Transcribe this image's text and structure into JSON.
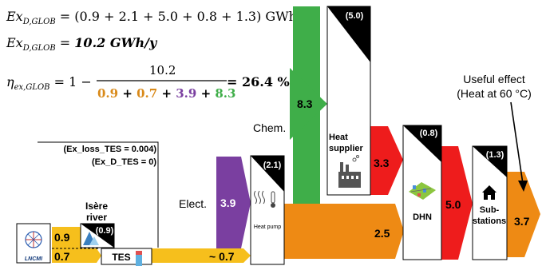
{
  "equations": {
    "line1": {
      "lhs": "Ex",
      "lhs_sub": "D,GLOB",
      "rhs": " = (0.9 + 2.1 + 5.0 + 0.8 + 1.3) GWh/y"
    },
    "line2": {
      "lhs": "Ex",
      "lhs_sub": "D,GLOB",
      "eq": " = ",
      "rhs": "10.2 GWh/y"
    },
    "line3": {
      "lhs": "η",
      "lhs_sub": "ex,GLOB",
      "eq": " = 1 − ",
      "numerator": "10.2",
      "den_terms": [
        {
          "text": "0.9",
          "color": "#d98a1a"
        },
        {
          "text": " + ",
          "color": "#000000"
        },
        {
          "text": "0.7",
          "color": "#d98a1a"
        },
        {
          "text": " + ",
          "color": "#000000"
        },
        {
          "text": "3.9",
          "color": "#7a3fa0"
        },
        {
          "text": " + ",
          "color": "#000000"
        },
        {
          "text": "8.3",
          "color": "#3fae49"
        }
      ],
      "result": " = 26.4 %"
    }
  },
  "notes": {
    "tes_loss": "(Ex_loss_TES = 0.004)",
    "tes_d": "(Ex_D_TES = 0)"
  },
  "labels": {
    "chem": "Chem.",
    "elect": "Elect.",
    "isere": "Isère\nriver",
    "useful_line1": "Useful effect",
    "useful_line2": "(Heat at 60 °C)"
  },
  "flows": {
    "chem_value": "8.3",
    "elect_value": "3.9",
    "in_top_value": "0.9",
    "in_bottom_value": "0.7",
    "tes_out_value": "~ 0.7",
    "heat_red_value": "3.3",
    "pump_out_value": "2.5",
    "dhn_out_value": "5.0",
    "final_value": "3.7"
  },
  "boxes": {
    "lncmi": "LNCMI",
    "tes": "TES",
    "river_destruction": "(0.9)",
    "heat_pump": "Heat pump",
    "heat_pump_destruction": "(2.1)",
    "heat_supplier": "Heat\nsupplier",
    "heat_supplier_destruction": "(5.0)",
    "dhn": "DHN",
    "dhn_destruction": "(0.8)",
    "substations": "Sub-\nstations",
    "substations_destruction": "(1.3)"
  },
  "colors": {
    "orange": "#ee8a14",
    "yellow": "#f6bf1c",
    "green": "#3fae49",
    "purple": "#7a3fa0",
    "red": "#ee1c1c",
    "black": "#000000"
  },
  "icons": [
    "heat-waves-icon",
    "thermometer-icon",
    "factory-icon",
    "network-icon",
    "house-icon",
    "waterfall-icon",
    "lncmi-logo-icon"
  ]
}
